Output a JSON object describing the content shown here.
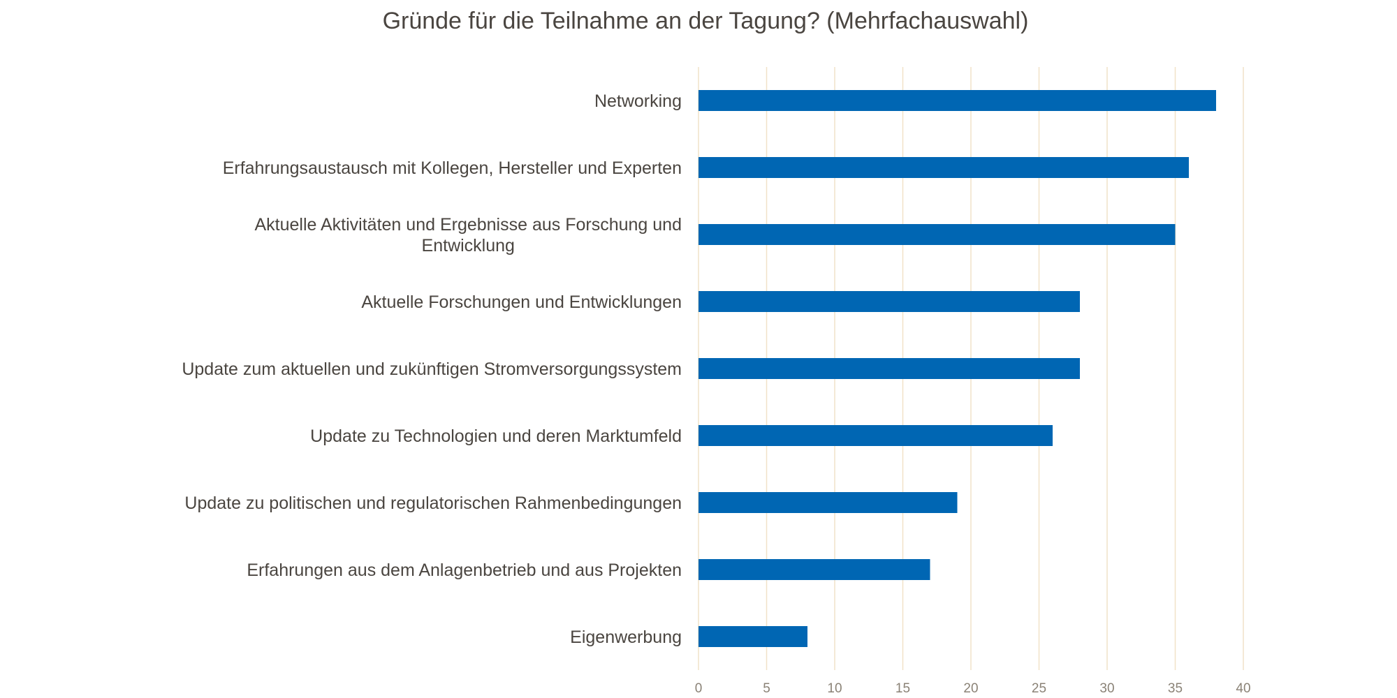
{
  "chart_data": {
    "type": "bar",
    "orientation": "horizontal",
    "title": "Gründe für die Teilnahme an der Tagung? (Mehrfachauswahl)",
    "xlabel": "",
    "ylabel": "",
    "categories": [
      "Networking",
      "Erfahrungsaustausch mit Kollegen, Hersteller und Experten",
      "Aktuelle Aktivitäten und Ergebnisse aus Forschung und Entwicklung",
      "Aktuelle Forschungen und Entwicklungen",
      "Update zum aktuellen und zukünftigen Stromversorgungssystem",
      "Update zu Technologien und deren Marktumfeld",
      "Update zu politischen und regulatorischen Rahmenbedingungen",
      "Erfahrungen aus dem Anlagenbetrieb und aus Projekten",
      "Eigenwerbung"
    ],
    "category_label_lines": [
      [
        "Networking"
      ],
      [
        "Erfahrungsaustausch mit Kollegen, Hersteller und Experten"
      ],
      [
        "Aktuelle Aktivitäten und Ergebnisse aus Forschung und",
        "Entwicklung"
      ],
      [
        "Aktuelle Forschungen und Entwicklungen"
      ],
      [
        "Update zum aktuellen und zukünftigen Stromversorgungssystem"
      ],
      [
        "Update zu Technologien und deren Marktumfeld"
      ],
      [
        "Update zu politischen und regulatorischen Rahmenbedingungen"
      ],
      [
        "Erfahrungen aus dem Anlagenbetrieb und aus Projekten"
      ],
      [
        "Eigenwerbung"
      ]
    ],
    "values": [
      38,
      36,
      35,
      28,
      28,
      26,
      19,
      17,
      8
    ],
    "xlim": [
      0,
      40
    ],
    "xticks": [
      0,
      5,
      10,
      15,
      20,
      25,
      30,
      35,
      40
    ],
    "grid": true,
    "legend": "none",
    "bar_color": "#0066b3"
  }
}
